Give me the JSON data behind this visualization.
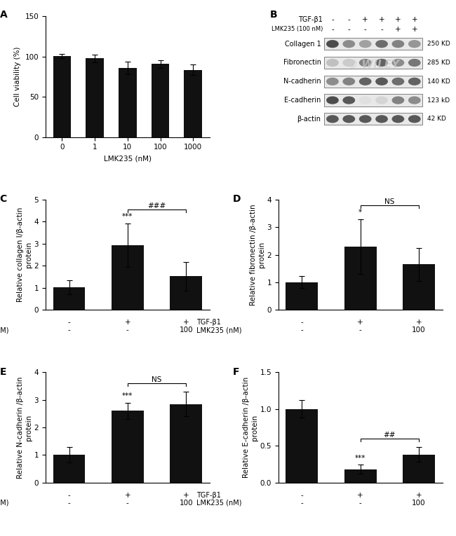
{
  "panel_A": {
    "categories": [
      "0",
      "1",
      "10",
      "100",
      "1000"
    ],
    "values": [
      100.5,
      97.5,
      85.5,
      90.5,
      83.5
    ],
    "errors": [
      2.5,
      5.0,
      8.0,
      4.5,
      6.5
    ],
    "xlabel": "LMK235 (nM)",
    "ylabel": "Cell viability (%)",
    "ylim": [
      0,
      150
    ],
    "yticks": [
      0,
      50,
      100,
      150
    ],
    "label": "A"
  },
  "panel_C": {
    "values": [
      1.03,
      2.93,
      1.52
    ],
    "errors": [
      0.32,
      1.0,
      0.65
    ],
    "ylabel": "Relative collagen I/β-actin\nprotein",
    "ylim": [
      0,
      5
    ],
    "yticks": [
      0,
      1,
      2,
      3,
      4,
      5
    ],
    "label": "C",
    "sig_bar1": "***",
    "sig_bar2": "###",
    "xlabel_vals1": [
      "-",
      "+",
      "+"
    ],
    "xlabel_vals2": [
      "-",
      "-",
      "100"
    ]
  },
  "panel_D": {
    "values": [
      1.0,
      2.3,
      1.65
    ],
    "errors": [
      0.22,
      1.0,
      0.6
    ],
    "ylabel": "Relative fibronectin /β-actin\nprotein",
    "ylim": [
      0,
      4
    ],
    "yticks": [
      0,
      1,
      2,
      3,
      4
    ],
    "label": "D",
    "sig_bar1": "*",
    "sig_bar2": "NS",
    "xlabel_vals1": [
      "-",
      "+",
      "+"
    ],
    "xlabel_vals2": [
      "-",
      "-",
      "100"
    ]
  },
  "panel_E": {
    "values": [
      1.0,
      2.6,
      2.85
    ],
    "errors": [
      0.28,
      0.3,
      0.45
    ],
    "ylabel": "Relative N-cadherin /β-actin\nprotein",
    "ylim": [
      0,
      4
    ],
    "yticks": [
      0,
      1,
      2,
      3,
      4
    ],
    "label": "E",
    "sig_bar1": "***",
    "sig_bar2": "NS",
    "xlabel_vals1": [
      "-",
      "+",
      "+"
    ],
    "xlabel_vals2": [
      "-",
      "-",
      "100"
    ]
  },
  "panel_F": {
    "values": [
      1.0,
      0.18,
      0.38
    ],
    "errors": [
      0.12,
      0.06,
      0.1
    ],
    "ylabel": "Relative E-cadherin /β-actin\nprotein",
    "ylim": [
      0,
      1.5
    ],
    "yticks": [
      0.0,
      0.5,
      1.0,
      1.5
    ],
    "label": "F",
    "sig_bar1": "***",
    "sig_bar2": "##",
    "xlabel_vals1": [
      "-",
      "+",
      "+"
    ],
    "xlabel_vals2": [
      "-",
      "-",
      "100"
    ]
  },
  "panel_B": {
    "label": "B",
    "tgf_row": [
      "-",
      "-",
      "+",
      "+",
      "+",
      "+"
    ],
    "lmk_row": [
      "-",
      "-",
      "-",
      "-",
      "+",
      "+"
    ],
    "row_labels": [
      "Collagen 1",
      "Fibronectin",
      "N-cadherin",
      "E-cadherin",
      "β-actin"
    ],
    "mw_labels": [
      "250 KD",
      "285 KD",
      "140 KD",
      "123 kD",
      "42 KD"
    ],
    "intensities": [
      [
        0.85,
        0.55,
        0.45,
        0.7,
        0.6,
        0.5
      ],
      [
        0.3,
        0.25,
        0.6,
        0.75,
        0.55,
        0.65
      ],
      [
        0.55,
        0.6,
        0.75,
        0.8,
        0.7,
        0.75
      ],
      [
        0.85,
        0.8,
        0.15,
        0.2,
        0.6,
        0.55
      ],
      [
        0.8,
        0.8,
        0.8,
        0.8,
        0.8,
        0.8
      ]
    ]
  },
  "bar_color": "#111111",
  "bar_width": 0.55,
  "capsize": 3,
  "font_size": 7.5,
  "label_font_size": 10,
  "tick_font_size": 7.5
}
